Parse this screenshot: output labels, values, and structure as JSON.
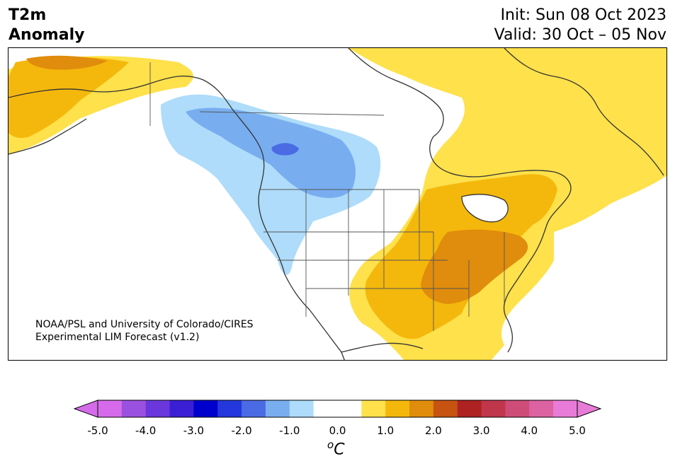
{
  "header": {
    "title_line1": "T2m",
    "title_line2": "Anomaly",
    "init_text": "Init: Sun 08 Oct 2023",
    "valid_text": "Valid: 30 Oct – 05 Nov"
  },
  "credit": {
    "line1": "NOAA/PSL and University of Colorado/CIRES",
    "line2": "Experimental LIM Forecast (v1.2)"
  },
  "colorbar": {
    "unit_base": "C",
    "unit_sup": "o",
    "tick_labels": [
      "-5.0",
      "-4.0",
      "-3.0",
      "-2.0",
      "-1.0",
      "0.0",
      "1.0",
      "2.0",
      "3.0",
      "4.0",
      "5.0"
    ],
    "colors": [
      "#d56bea",
      "#9b51e0",
      "#6937dc",
      "#3a1fd4",
      "#0000cc",
      "#2337dc",
      "#4b6be4",
      "#78aef0",
      "#aedcfa",
      "#ffffff",
      "#ffffff",
      "#fee14b",
      "#f4b80c",
      "#e08c0c",
      "#c6530f",
      "#ae2222",
      "#c0364b",
      "#cd4d78",
      "#dc62a2",
      "#e97bd8"
    ],
    "under_color": "#d56bea",
    "over_color": "#e97bd8"
  },
  "map": {
    "anomaly_colors": {
      "cool_1": "#aedcfa",
      "cool_2": "#78aef0",
      "cool_3": "#4b6be4",
      "warm_1": "#fee14b",
      "warm_2": "#f4b80c",
      "warm_3": "#e08c0c",
      "coast": "#333333"
    }
  }
}
